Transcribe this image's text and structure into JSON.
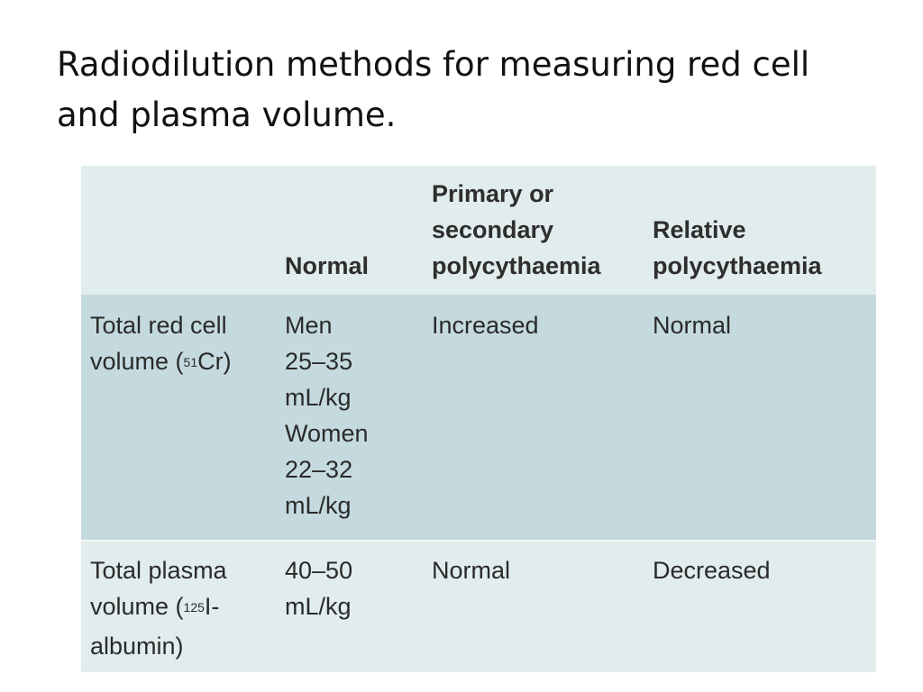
{
  "slide": {
    "title_line1": "Radiodilution methods for measuring red cell",
    "title_line2": "and plasma volume."
  },
  "table": {
    "headers": {
      "col1": "",
      "col2": "Normal",
      "col3_line1": "Primary or",
      "col3_line2": "secondary",
      "col3_line3": "polycythaemia",
      "col4_line1": "Relative",
      "col4_line2": "polycythaemia"
    },
    "rows": [
      {
        "label_line1": "Total red cell",
        "label_line2_pre": "volume (",
        "label_isotope_mass": "51",
        "label_line2_post": "Cr)",
        "normal_lines": [
          "Men",
          "25–35",
          "mL/kg",
          "Women",
          "22–32",
          "mL/kg"
        ],
        "primary_secondary": "Increased",
        "relative": "Normal"
      },
      {
        "label_line1": "Total plasma",
        "label_line2_pre": "volume (",
        "label_isotope_mass": "125",
        "label_line2_post": "I-",
        "label_line3": "albumin)",
        "normal_lines": [
          "40–50",
          "mL/kg"
        ],
        "primary_secondary": "Normal",
        "relative": "Decreased"
      }
    ]
  },
  "colors": {
    "header_bg": "#e1eced",
    "row_highlight_bg": "#c5dade",
    "row_light_bg": "#e1eced"
  }
}
